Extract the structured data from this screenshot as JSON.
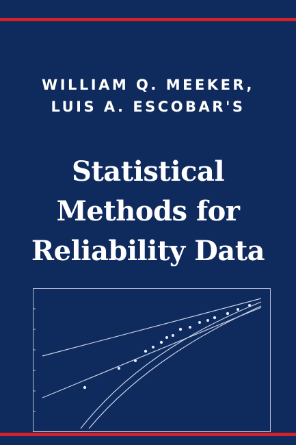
{
  "cover": {
    "authors": [
      "WILLIAM Q. MEEKER,",
      "LUIS A. ESCOBAR'S"
    ],
    "title_lines": [
      "Statistical",
      "Methods for",
      "Reliability Data"
    ],
    "colors": {
      "background": "#0f2a5c",
      "stripe": "#d4222a",
      "text": "#ffffff",
      "plot_lines": "#c9d3ea"
    }
  }
}
